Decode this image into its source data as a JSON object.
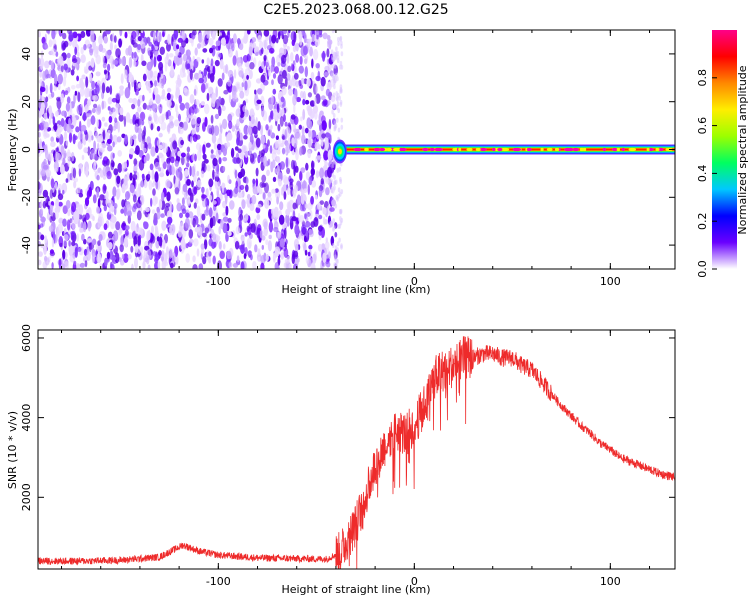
{
  "figure": {
    "title": "C2E5.2023.068.00.12.G25"
  },
  "chart_data": [
    {
      "type": "heatmap",
      "title": "C2E5.2023.068.00.12.G25",
      "xlabel": "Height of straight line (km)",
      "ylabel": "Frequency (Hz)",
      "xlim": [
        -192,
        133
      ],
      "ylim": [
        -50,
        50
      ],
      "x_ticks": [
        -100,
        0,
        100
      ],
      "y_ticks": [
        -40,
        -20,
        0,
        20,
        40
      ],
      "noise_region_x": [
        -192,
        -40
      ],
      "signal_line": {
        "x": [
          -40,
          133
        ],
        "frequency": 0
      },
      "colorbar": {
        "label": "Normalized spectral amplitude",
        "range": [
          0,
          1
        ],
        "ticks": [
          0.0,
          0.2,
          0.4,
          0.6,
          0.8
        ],
        "colors": [
          "#ffffff",
          "#6a00ff",
          "#0000ff",
          "#00c8ff",
          "#00ff60",
          "#9cff00",
          "#ffee00",
          "#ff8800",
          "#ff0000",
          "#ff0088"
        ]
      }
    },
    {
      "type": "line",
      "xlabel": "Height of straight line (km)",
      "ylabel": "SNR (10 * v/v)",
      "xlim": [
        -192,
        133
      ],
      "ylim": [
        200,
        6200
      ],
      "x_ticks": [
        -100,
        0,
        100
      ],
      "y_ticks": [
        2000,
        4000,
        6000
      ],
      "color": "#ee2b2b",
      "series": [
        {
          "x": [
            -192,
            -170,
            -150,
            -130,
            -118,
            -110,
            -100,
            -80,
            -60,
            -45,
            -38,
            -30,
            -25,
            -20,
            -15,
            -10,
            -5,
            0,
            5,
            10,
            15,
            20,
            25,
            30,
            35,
            40,
            45,
            50,
            55,
            60,
            65,
            70,
            75,
            80,
            85,
            90,
            95,
            100,
            105,
            110,
            115,
            120,
            125,
            133
          ],
          "y": [
            400,
            400,
            420,
            500,
            800,
            650,
            550,
            480,
            460,
            450,
            600,
            1300,
            2000,
            2800,
            3300,
            3700,
            3600,
            3800,
            4300,
            5000,
            5200,
            5300,
            5500,
            5500,
            5600,
            5600,
            5500,
            5500,
            5300,
            5200,
            4900,
            4600,
            4300,
            4050,
            3800,
            3600,
            3350,
            3200,
            3000,
            2900,
            2800,
            2700,
            2600,
            2500
          ]
        }
      ]
    }
  ]
}
